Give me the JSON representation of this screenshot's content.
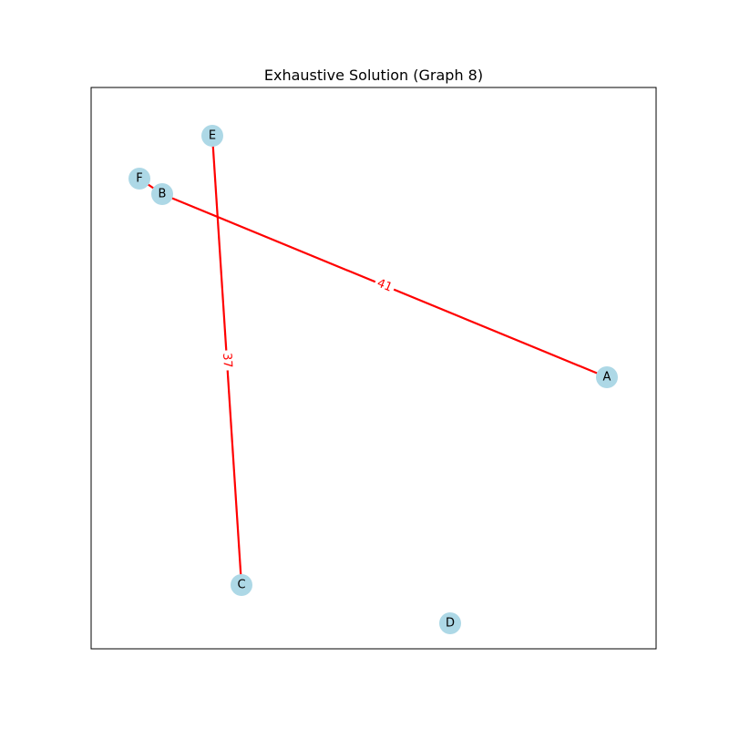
{
  "title": "Exhaustive Solution (Graph 8)",
  "colors": {
    "node_fill": "#add8e6",
    "edge": "#ff0000",
    "frame": "#000000",
    "background": "#ffffff"
  },
  "nodes": [
    {
      "id": "A",
      "label": "A"
    },
    {
      "id": "B",
      "label": "B"
    },
    {
      "id": "C",
      "label": "C"
    },
    {
      "id": "D",
      "label": "D"
    },
    {
      "id": "E",
      "label": "E"
    },
    {
      "id": "F",
      "label": "F"
    }
  ],
  "edges": [
    {
      "from": "F",
      "to": "B",
      "weight": ""
    },
    {
      "from": "B",
      "to": "A",
      "weight": "41"
    },
    {
      "from": "E",
      "to": "C",
      "weight": "37"
    }
  ]
}
